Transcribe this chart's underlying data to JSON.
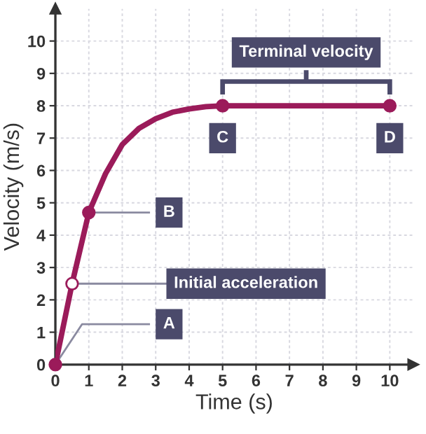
{
  "chart_data": {
    "type": "line",
    "xlabel": "Time (s)",
    "ylabel": "Velocity (m/s)",
    "xlim": [
      0,
      10.7
    ],
    "ylim": [
      0,
      11
    ],
    "xticks": [
      0,
      1,
      2,
      3,
      4,
      5,
      6,
      7,
      8,
      9,
      10
    ],
    "yticks": [
      0,
      1,
      2,
      3,
      4,
      5,
      6,
      7,
      8,
      9,
      10
    ],
    "grid": true,
    "series": [
      {
        "type": "line",
        "color": "#9b1b5a",
        "x": [
          0,
          0.5,
          1,
          1.5,
          2,
          2.5,
          3,
          3.5,
          4,
          4.5,
          5,
          10
        ],
        "values": [
          0,
          2.5,
          4.7,
          5.9,
          6.8,
          7.3,
          7.6,
          7.8,
          7.9,
          7.97,
          8,
          8
        ]
      },
      {
        "type": "scatter",
        "color": "#9b1b5a",
        "marker": "circle",
        "x": [
          0,
          1,
          5,
          10
        ],
        "values": [
          0,
          4.7,
          8,
          8
        ]
      },
      {
        "type": "scatter",
        "color": "#ffffff",
        "marker": "circle",
        "x": [
          0.5
        ],
        "values": [
          2.5
        ]
      }
    ],
    "annotations": [
      {
        "text": "Terminal velocity",
        "x": 7.5,
        "y": 8
      },
      {
        "text": "C",
        "x": 5,
        "y": 8
      },
      {
        "text": "D",
        "x": 10,
        "y": 8
      },
      {
        "text": "B",
        "x": 1,
        "y": 4.7
      },
      {
        "text": "Initial acceleration",
        "x": 0.5,
        "y": 2.5
      },
      {
        "text": "A",
        "x": 0,
        "y": 0
      }
    ]
  }
}
